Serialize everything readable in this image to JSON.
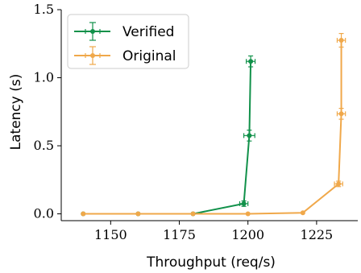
{
  "chart_data": {
    "type": "line",
    "xlabel": "Throughput (req/s)",
    "ylabel": "Latency (s)",
    "xlim": [
      1132,
      1240
    ],
    "ylim": [
      -0.05,
      1.5
    ],
    "xticks": [
      1150,
      1175,
      1200,
      1225
    ],
    "yticks": [
      0.0,
      0.5,
      1.0,
      1.5
    ],
    "xtick_labels": [
      "1150",
      "1175",
      "1200",
      "1225"
    ],
    "ytick_labels": [
      "0.0",
      "0.5",
      "1.0",
      "1.5"
    ],
    "grid": false,
    "legend_position": "top-left",
    "series": [
      {
        "name": "Verified",
        "color": "#11914a",
        "x": [
          1140,
          1160,
          1180,
          1198.5,
          1200.5,
          1201
        ],
        "y": [
          0.0,
          0.0,
          0.0,
          0.075,
          0.575,
          1.12
        ],
        "xerr": [
          0,
          0,
          0,
          1.5,
          2.0,
          1.6
        ],
        "yerr": [
          0,
          0,
          0,
          0.02,
          0.04,
          0.04
        ]
      },
      {
        "name": "Original",
        "color": "#f0a84a",
        "x": [
          1140,
          1160,
          1180,
          1200,
          1220,
          1233,
          1234,
          1234
        ],
        "y": [
          0.0,
          0.0,
          0.0,
          0.0,
          0.008,
          0.22,
          0.735,
          1.275
        ],
        "xerr": [
          0,
          0,
          0,
          0,
          0,
          1.5,
          1.5,
          1.5
        ],
        "yerr": [
          0,
          0,
          0,
          0,
          0,
          0.02,
          0.04,
          0.05
        ]
      }
    ]
  }
}
